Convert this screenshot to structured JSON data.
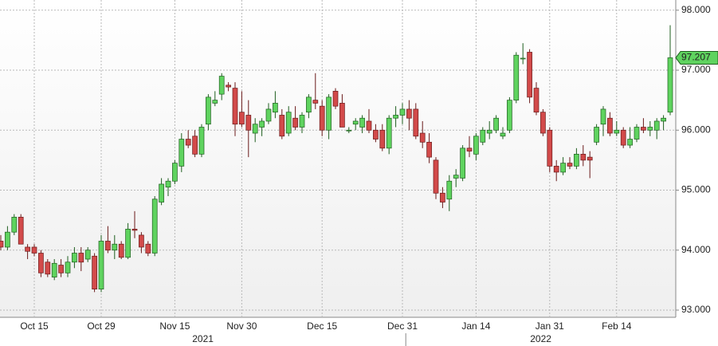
{
  "chart_data": {
    "type": "candlestick",
    "categories": [
      null,
      null,
      null,
      null,
      null,
      "Oct 15",
      null,
      null,
      null,
      null,
      null,
      null,
      null,
      null,
      null,
      "Oct 29",
      null,
      null,
      null,
      null,
      null,
      null,
      null,
      null,
      null,
      null,
      "Nov 15",
      null,
      null,
      null,
      null,
      null,
      null,
      null,
      null,
      null,
      "Nov 30",
      null,
      null,
      null,
      null,
      null,
      null,
      null,
      null,
      null,
      null,
      null,
      "Dec 15",
      null,
      null,
      null,
      null,
      null,
      null,
      null,
      null,
      null,
      null,
      null,
      "Dec 31",
      null,
      null,
      null,
      null,
      null,
      null,
      null,
      null,
      null,
      null,
      "Jan 14",
      null,
      null,
      null,
      null,
      null,
      null,
      null,
      null,
      null,
      null,
      "Jan 31",
      null,
      null,
      null,
      null,
      null,
      null,
      null,
      null,
      null,
      "Feb 14",
      null,
      null,
      null,
      null,
      null,
      null,
      null,
      null
    ],
    "years": [
      {
        "label": "2021",
        "from": 0,
        "to": 60
      },
      {
        "label": "2022",
        "from": 60,
        "to": 100
      }
    ],
    "open": [
      94.15,
      94.05,
      94.3,
      94.55,
      94.05,
      94.05,
      93.95,
      93.8,
      93.55,
      93.75,
      93.62,
      93.8,
      93.95,
      93.85,
      93.9,
      93.35,
      94.15,
      94.0,
      94.1,
      93.88,
      94.35,
      94.25,
      94.1,
      93.95,
      94.8,
      95.05,
      95.15,
      95.4,
      95.85,
      95.9,
      95.6,
      96.1,
      96.45,
      96.6,
      96.75,
      96.7,
      96.3,
      96.25,
      95.95,
      96.05,
      96.15,
      96.3,
      96.25,
      95.95,
      96.2,
      96.05,
      96.3,
      96.5,
      96.4,
      96.0,
      96.65,
      96.45,
      96.0,
      96.1,
      96.05,
      96.15,
      96.0,
      96.0,
      95.7,
      96.2,
      96.25,
      96.35,
      96.35,
      95.95,
      95.8,
      95.5,
      94.95,
      94.85,
      95.2,
      95.2,
      95.7,
      95.6,
      95.8,
      95.95,
      96.0,
      95.9,
      96.0,
      96.5,
      97.2,
      97.3,
      96.7,
      96.3,
      96.0,
      95.4,
      95.3,
      95.45,
      95.4,
      95.6,
      95.55,
      95.8,
      96.1,
      96.2,
      95.95,
      96.0,
      95.75,
      95.85,
      96.05,
      96.0,
      96.0,
      96.15,
      96.3
    ],
    "high": [
      94.25,
      94.4,
      94.6,
      94.6,
      94.1,
      94.1,
      94.0,
      93.85,
      93.85,
      93.85,
      93.9,
      94.05,
      94.05,
      94.05,
      93.95,
      94.25,
      94.4,
      94.25,
      94.15,
      94.45,
      94.65,
      94.3,
      94.15,
      94.9,
      95.2,
      95.2,
      95.5,
      95.95,
      96.0,
      96.0,
      96.1,
      96.6,
      96.65,
      96.95,
      96.8,
      96.8,
      96.65,
      96.5,
      96.2,
      96.2,
      96.45,
      96.65,
      96.35,
      96.4,
      96.4,
      96.3,
      96.6,
      96.95,
      96.5,
      96.6,
      96.7,
      96.6,
      96.05,
      96.2,
      96.25,
      96.35,
      96.1,
      96.1,
      96.25,
      96.4,
      96.45,
      96.5,
      96.45,
      96.15,
      95.95,
      95.55,
      95.05,
      95.25,
      95.35,
      95.75,
      95.9,
      95.95,
      96.05,
      96.15,
      96.25,
      96.05,
      96.55,
      97.3,
      97.45,
      97.35,
      96.8,
      96.35,
      96.05,
      95.5,
      95.55,
      95.55,
      95.7,
      95.75,
      95.65,
      96.1,
      96.4,
      96.3,
      96.15,
      96.05,
      96.05,
      96.1,
      96.2,
      96.15,
      96.2,
      96.25,
      97.75
    ],
    "low": [
      94.0,
      94.0,
      94.25,
      94.1,
      93.85,
      93.9,
      93.55,
      93.55,
      93.5,
      93.55,
      93.55,
      93.7,
      93.65,
      93.8,
      93.3,
      93.3,
      93.95,
      93.85,
      93.85,
      93.85,
      94.2,
      93.95,
      93.9,
      93.9,
      94.75,
      94.9,
      95.1,
      95.3,
      95.7,
      95.55,
      95.55,
      96.0,
      96.4,
      96.5,
      96.65,
      95.9,
      96.05,
      95.55,
      95.8,
      95.9,
      96.1,
      96.2,
      95.85,
      95.9,
      96.0,
      95.95,
      96.2,
      96.35,
      95.9,
      95.85,
      96.35,
      96.05,
      95.95,
      96.0,
      95.95,
      95.95,
      95.8,
      95.65,
      95.6,
      96.05,
      96.1,
      96.0,
      95.85,
      95.7,
      95.45,
      94.85,
      94.7,
      94.65,
      95.05,
      95.15,
      95.55,
      95.5,
      95.75,
      95.85,
      95.95,
      95.85,
      95.95,
      96.45,
      97.1,
      96.45,
      96.25,
      95.9,
      95.3,
      95.15,
      95.25,
      95.35,
      95.35,
      95.4,
      95.2,
      95.75,
      95.9,
      95.9,
      95.9,
      95.7,
      95.7,
      95.8,
      95.95,
      95.9,
      95.85,
      96.0,
      96.25
    ],
    "close": [
      94.05,
      94.3,
      94.55,
      94.1,
      93.98,
      93.95,
      93.62,
      93.6,
      93.78,
      93.62,
      93.8,
      93.95,
      93.8,
      94.0,
      93.35,
      94.15,
      94.0,
      94.1,
      93.88,
      94.35,
      94.33,
      94.05,
      93.95,
      94.85,
      95.1,
      95.15,
      95.45,
      95.85,
      95.75,
      95.6,
      96.05,
      96.55,
      96.5,
      96.9,
      96.72,
      96.1,
      96.1,
      96.0,
      96.1,
      96.15,
      96.35,
      96.45,
      95.9,
      96.3,
      96.05,
      96.25,
      96.55,
      96.45,
      96.0,
      96.55,
      96.4,
      96.05,
      96.0,
      96.15,
      96.2,
      96.0,
      95.85,
      95.7,
      96.2,
      96.25,
      96.35,
      96.2,
      95.9,
      95.8,
      95.55,
      94.95,
      94.8,
      95.15,
      95.25,
      95.7,
      95.65,
      95.9,
      96.0,
      96.0,
      96.2,
      95.95,
      96.5,
      97.25,
      97.2,
      96.55,
      96.3,
      95.95,
      95.4,
      95.3,
      95.45,
      95.4,
      95.6,
      95.5,
      95.5,
      96.05,
      96.35,
      95.95,
      96.0,
      95.75,
      95.85,
      96.05,
      96.0,
      96.05,
      96.15,
      96.2,
      97.207
    ],
    "up_color": "#5fd35f",
    "down_color": "#d24a4a",
    "ylim": [
      92.88,
      98.17
    ],
    "yticks": [
      {
        "value": 93,
        "label": "93.000"
      },
      {
        "value": 94,
        "label": "94.000"
      },
      {
        "value": 95,
        "label": "95.000"
      },
      {
        "value": 96,
        "label": "96.000"
      },
      {
        "value": 97,
        "label": "97.000"
      },
      {
        "value": 98,
        "label": "98.000"
      }
    ],
    "grid": true
  }
}
